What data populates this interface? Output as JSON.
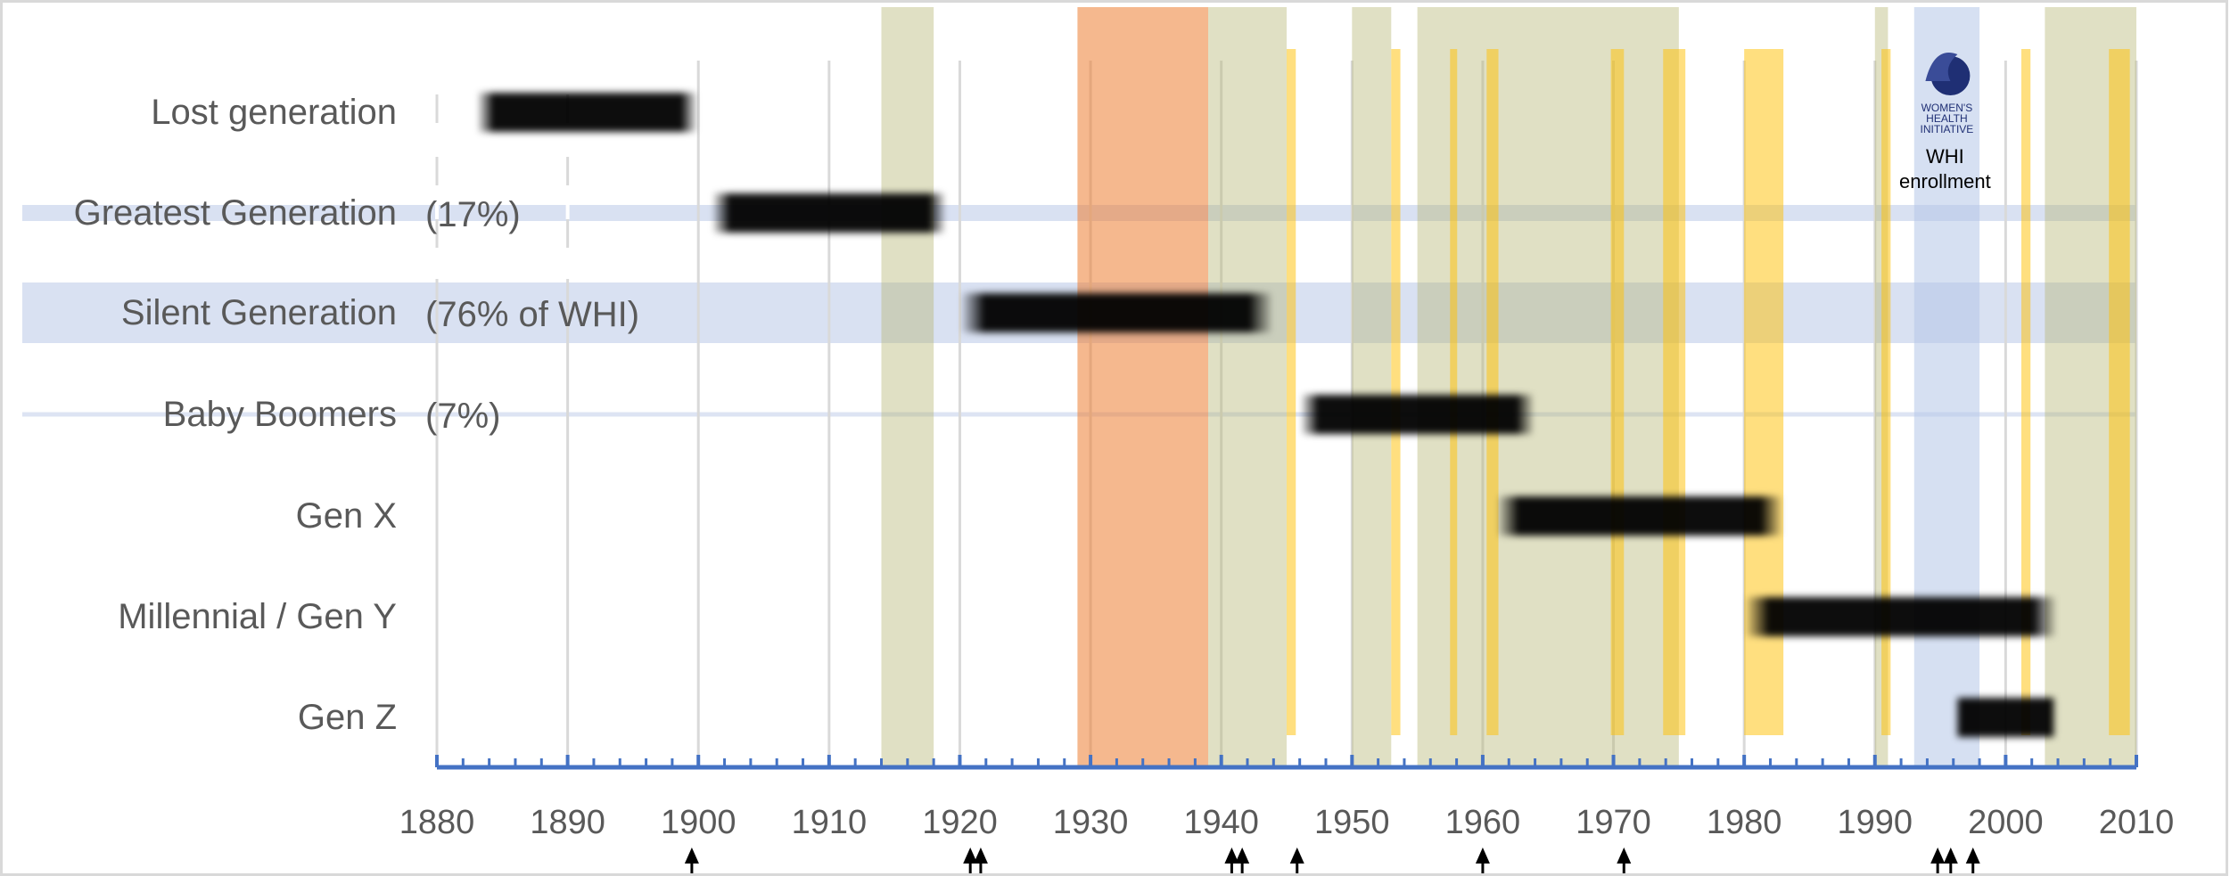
{
  "chart_data": {
    "type": "timeline",
    "x_range": [
      1880,
      2010
    ],
    "x_ticks": [
      "1880",
      "1890",
      "1900",
      "1910",
      "1920",
      "1930",
      "1940",
      "1950",
      "1960",
      "1970",
      "1980",
      "1990",
      "2000",
      "2010"
    ],
    "generations": [
      {
        "label": "Lost generation",
        "share": "",
        "start": 1883,
        "end": 1900
      },
      {
        "label": "Greatest Generation",
        "share": "(17%)",
        "start": 1901,
        "end": 1919
      },
      {
        "label": "Silent Generation",
        "share": "(76% of WHI)",
        "start": 1920,
        "end": 1944
      },
      {
        "label": "Baby Boomers",
        "share": "(7%)",
        "start": 1946,
        "end": 1964
      },
      {
        "label": "Gen X",
        "share": "",
        "start": 1961,
        "end": 1983
      },
      {
        "label": "Millennial / Gen Y",
        "share": "",
        "start": 1980,
        "end": 2004
      },
      {
        "label": "Gen Z",
        "share": "",
        "start": 1996,
        "end": 2004
      }
    ],
    "war_periods": [
      {
        "start": 1914,
        "end": 1918
      },
      {
        "start": 1939,
        "end": 1945
      },
      {
        "start": 1950,
        "end": 1953
      },
      {
        "start": 1955,
        "end": 1975
      },
      {
        "start": 1990,
        "end": 1991
      },
      {
        "start": 2003,
        "end": 2011
      }
    ],
    "depression_period": {
      "start": 1929,
      "end": 1939
    },
    "recessions": [
      {
        "start": 1945,
        "end": 1945.7,
        "bottom_row": 7
      },
      {
        "start": 1953,
        "end": 1953.7,
        "bottom_row": 7
      },
      {
        "start": 1957.5,
        "end": 1958,
        "bottom_row": 7
      },
      {
        "start": 1960.3,
        "end": 1961.2,
        "bottom_row": 7
      },
      {
        "start": 1969.8,
        "end": 1970.8,
        "bottom_row": 7
      },
      {
        "start": 1973.8,
        "end": 1975.5,
        "bottom_row": 7
      },
      {
        "start": 1980,
        "end": 1983,
        "bottom_row": 7
      },
      {
        "start": 1990.5,
        "end": 1991.2,
        "bottom_row": 7
      },
      {
        "start": 2001.2,
        "end": 2001.9,
        "bottom_row": 7
      },
      {
        "start": 2007.9,
        "end": 2009.5,
        "bottom_row": 7
      }
    ],
    "whi_enrollment": {
      "start": 1993,
      "end": 1998,
      "label_line1": "WHI",
      "label_line2": "enrollment",
      "logo_text": [
        "WOMEN'S",
        "HEALTH",
        "INITIATIVE"
      ]
    },
    "highlighted_rows": [
      {
        "row": 1,
        "strength": "thin"
      },
      {
        "row": 2,
        "strength": "thick"
      },
      {
        "row": 3,
        "strength": "line"
      }
    ],
    "event_arrows": [
      1899.5,
      1920.8,
      1921.6,
      1940.8,
      1941.6,
      1945.8,
      1960,
      1970.8,
      1994.8,
      1995.8,
      1997.5
    ],
    "colors": {
      "generation_bar": "#000000",
      "war": "#b5b572",
      "depression": "#ed7d31",
      "recession": "#ffc000",
      "whi": "#b4c7e7",
      "row_highlight": "#d9e1f2",
      "axis": "#4472c4",
      "label": "#595959",
      "grid": "#d9d9d9"
    },
    "grid": true,
    "legend": "none"
  }
}
